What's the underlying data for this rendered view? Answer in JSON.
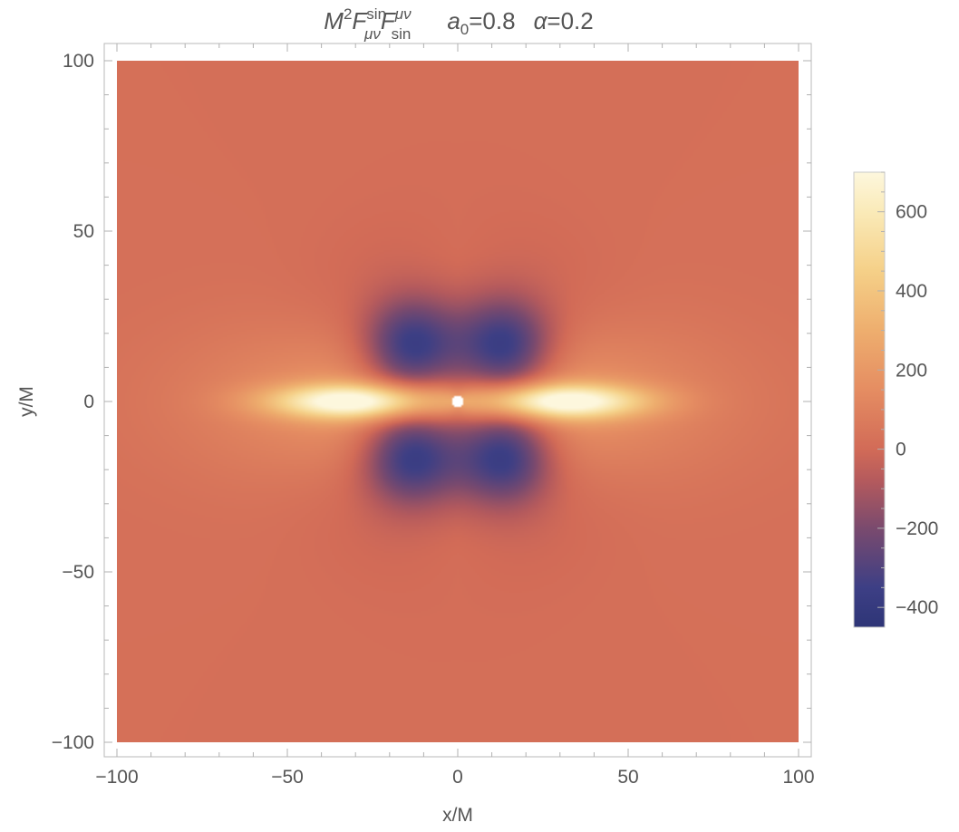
{
  "chart_data": {
    "type": "heatmap",
    "title": {
      "formula": {
        "base": "M",
        "power": "2",
        "f": "F",
        "lower_index": "μν",
        "upper_index": "μν",
        "field_sub": "sin"
      },
      "params": {
        "a_symbol": "a",
        "a_sub": "0",
        "a_value": "=0.8",
        "alpha_symbol": "α",
        "alpha_value": "=0.2"
      }
    },
    "xlabel": "x/M",
    "ylabel": "y/M",
    "xlim": [
      -100,
      100
    ],
    "ylim": [
      -100,
      100
    ],
    "x_ticks": [
      {
        "value": -100,
        "label": "−100"
      },
      {
        "value": -50,
        "label": "−50"
      },
      {
        "value": 0,
        "label": "0"
      },
      {
        "value": 50,
        "label": "50"
      },
      {
        "value": 100,
        "label": "100"
      }
    ],
    "y_ticks": [
      {
        "value": -100,
        "label": "−100"
      },
      {
        "value": -50,
        "label": "−50"
      },
      {
        "value": 0,
        "label": "0"
      },
      {
        "value": 50,
        "label": "50"
      },
      {
        "value": 100,
        "label": "100"
      }
    ],
    "colorbar": {
      "range": [
        -450,
        700
      ],
      "ticks": [
        {
          "value": -400,
          "label": "−400"
        },
        {
          "value": -200,
          "label": "−200"
        },
        {
          "value": 0,
          "label": "0"
        },
        {
          "value": 200,
          "label": "200"
        },
        {
          "value": 400,
          "label": "400"
        },
        {
          "value": 600,
          "label": "600"
        }
      ],
      "colormap": [
        {
          "value": -450,
          "color": "#2e3577"
        },
        {
          "value": -350,
          "color": "#3d3f85"
        },
        {
          "value": -200,
          "color": "#7a4a6e"
        },
        {
          "value": -80,
          "color": "#b45a5d"
        },
        {
          "value": 0,
          "color": "#d26b57"
        },
        {
          "value": 150,
          "color": "#e58d62"
        },
        {
          "value": 300,
          "color": "#eeae6e"
        },
        {
          "value": 450,
          "color": "#f5d088"
        },
        {
          "value": 600,
          "color": "#faeab8"
        },
        {
          "value": 700,
          "color": "#fdf7dd"
        }
      ]
    },
    "background_value": 20,
    "features": [
      {
        "kind": "negative-lobe",
        "x": -13.5,
        "y": 15.5,
        "peak": -450,
        "radius": 7.5
      },
      {
        "kind": "negative-lobe",
        "x": 13.5,
        "y": 15.5,
        "peak": -450,
        "radius": 7.5
      },
      {
        "kind": "negative-lobe",
        "x": -13.5,
        "y": -15.5,
        "peak": -450,
        "radius": 7.5
      },
      {
        "kind": "negative-lobe",
        "x": 13.5,
        "y": -15.5,
        "peak": -450,
        "radius": 7.5
      },
      {
        "kind": "positive-lobe",
        "x": -30,
        "y": 0,
        "peak": 680,
        "rx": 24,
        "ry": 5
      },
      {
        "kind": "positive-lobe",
        "x": 30,
        "y": 0,
        "peak": 680,
        "rx": 24,
        "ry": 5
      },
      {
        "kind": "hole",
        "x": 0,
        "y": 0,
        "radius": 1.6,
        "color": "#ffffff"
      }
    ]
  }
}
